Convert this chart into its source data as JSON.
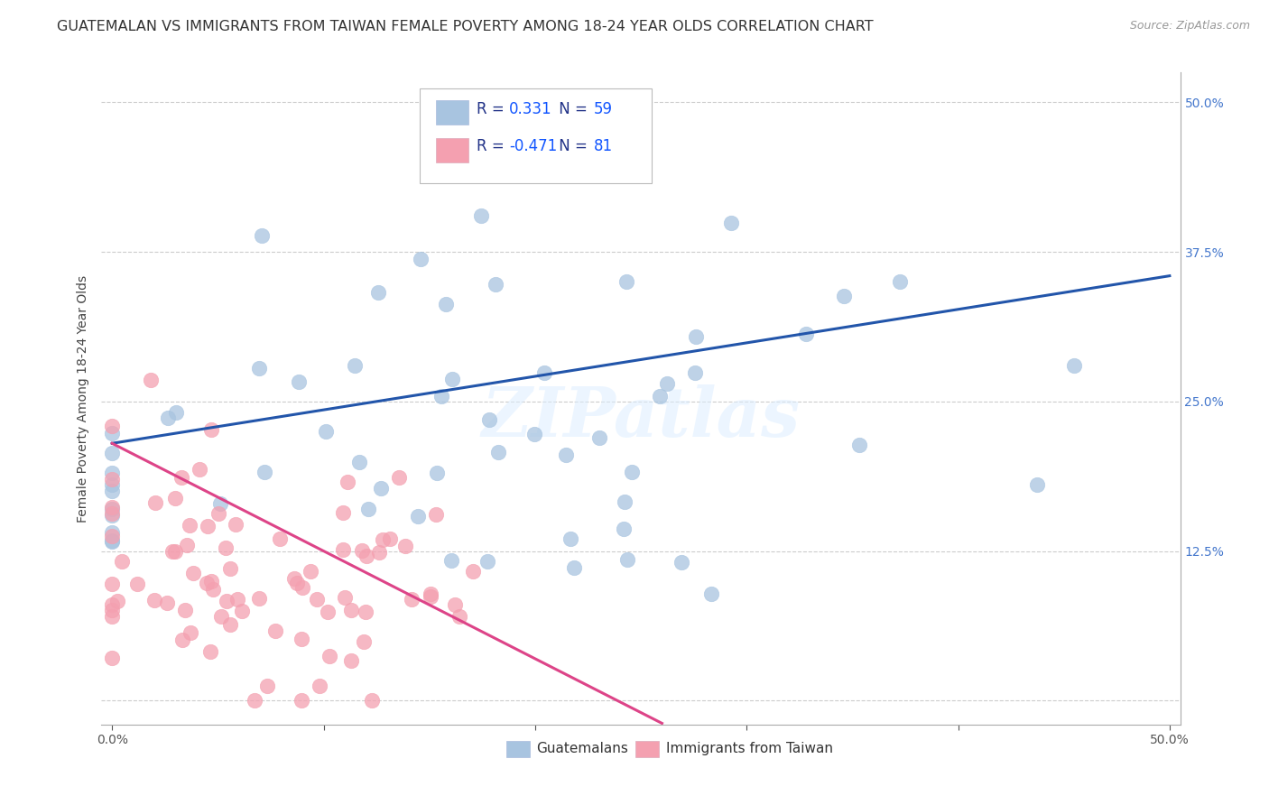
{
  "title": "GUATEMALAN VS IMMIGRANTS FROM TAIWAN FEMALE POVERTY AMONG 18-24 YEAR OLDS CORRELATION CHART",
  "source": "Source: ZipAtlas.com",
  "ylabel": "Female Poverty Among 18-24 Year Olds",
  "R_guatemalan": 0.331,
  "N_guatemalan": 59,
  "R_taiwan": -0.471,
  "N_taiwan": 81,
  "blue_color": "#A8C4E0",
  "pink_color": "#F4A0B0",
  "blue_line_color": "#2255AA",
  "pink_line_color": "#DD4488",
  "watermark": "ZIPatlas",
  "title_fontsize": 11.5,
  "axis_label_fontsize": 10,
  "tick_fontsize": 10,
  "legend_label_blue": "Guatemalans",
  "legend_label_pink": "Immigrants from Taiwan",
  "blue_line_intercept": 0.215,
  "blue_line_slope": 0.28,
  "pink_line_intercept": 0.215,
  "pink_line_slope": -0.9
}
